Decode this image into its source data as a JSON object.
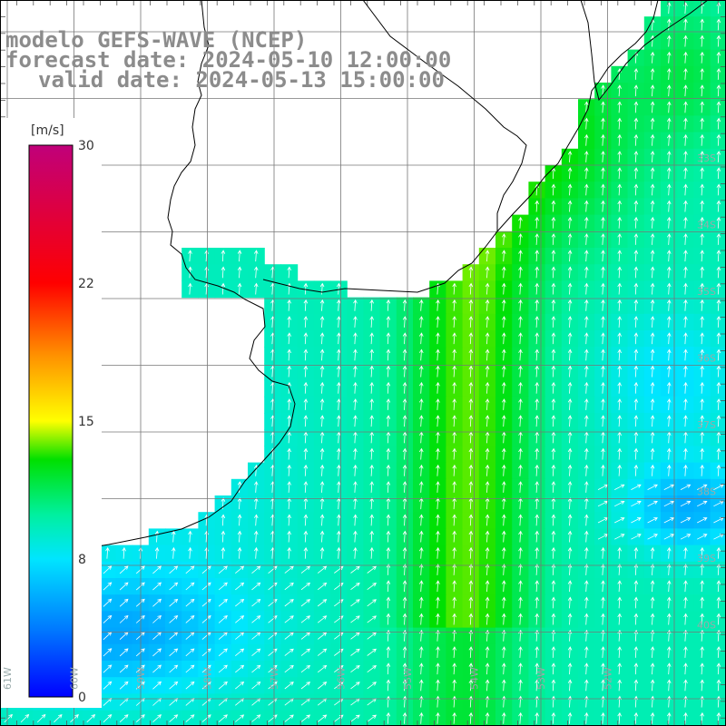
{
  "title": {
    "model": "modelo GEFS-WAVE (NCEP)",
    "forecast": "forecast date: 2024-05-10 12:00:00",
    "valid": "valid date: 2024-05-13 15:00:00"
  },
  "colorbar": {
    "unit": "[m/s]",
    "ticks": [
      "30",
      "22",
      "15",
      "8",
      "0"
    ],
    "min": 0,
    "max": 30
  },
  "axes": {
    "lon_labels": [
      "61W",
      "60W",
      "59W",
      "58W",
      "57W",
      "56W",
      "55W",
      "54W",
      "53W",
      "52W"
    ],
    "lat_labels": [
      "33S",
      "34S",
      "35S",
      "36S",
      "37S",
      "38S",
      "39S",
      "40S"
    ]
  }
}
